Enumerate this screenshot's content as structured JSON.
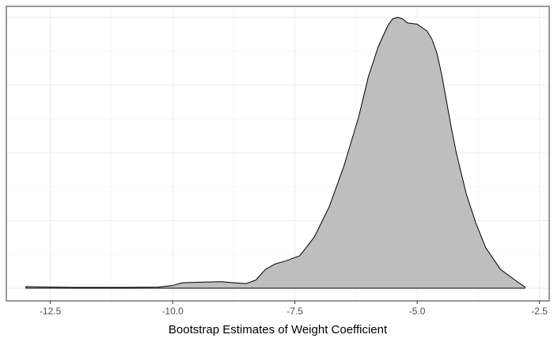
{
  "chart_data": {
    "type": "area",
    "title": "",
    "xlabel": "Bootstrap Estimates of Weight Coefficient",
    "ylabel": "",
    "xlim": [
      -13.4,
      -2.3
    ],
    "ylim": [
      0,
      1
    ],
    "x_ticks": [
      {
        "value": -12.5,
        "label": "-12.5"
      },
      {
        "value": -10.0,
        "label": "-10.0"
      },
      {
        "value": -7.5,
        "label": "-7.5"
      },
      {
        "value": -5.0,
        "label": "-5.0"
      },
      {
        "value": -2.5,
        "label": "-2.5"
      }
    ],
    "grid": true,
    "fill_color": "#bebebe",
    "line_color": "#000000",
    "series": [
      {
        "x": [
          -13.0,
          -12.8,
          -12.0,
          -11.0,
          -10.3,
          -10.0,
          -9.8,
          -9.5,
          -9.0,
          -8.8,
          -8.5,
          -8.3,
          -8.1,
          -7.9,
          -7.7,
          -7.4,
          -7.1,
          -6.8,
          -6.5,
          -6.2,
          -6.0,
          -5.8,
          -5.6,
          -5.5,
          -5.4,
          -5.3,
          -5.2,
          -5.0,
          -4.8,
          -4.7,
          -4.6,
          -4.5,
          -4.4,
          -4.3,
          -4.2,
          -4.0,
          -3.8,
          -3.6,
          -3.3,
          -3.0,
          -2.8
        ],
        "y": [
          0.006,
          0.005,
          0.003,
          0.003,
          0.004,
          0.01,
          0.02,
          0.022,
          0.024,
          0.021,
          0.017,
          0.03,
          0.07,
          0.09,
          0.1,
          0.12,
          0.19,
          0.3,
          0.45,
          0.63,
          0.78,
          0.89,
          0.97,
          0.995,
          1.0,
          0.995,
          0.98,
          0.975,
          0.95,
          0.92,
          0.87,
          0.79,
          0.69,
          0.59,
          0.5,
          0.35,
          0.24,
          0.15,
          0.07,
          0.03,
          0.005
        ]
      }
    ]
  }
}
